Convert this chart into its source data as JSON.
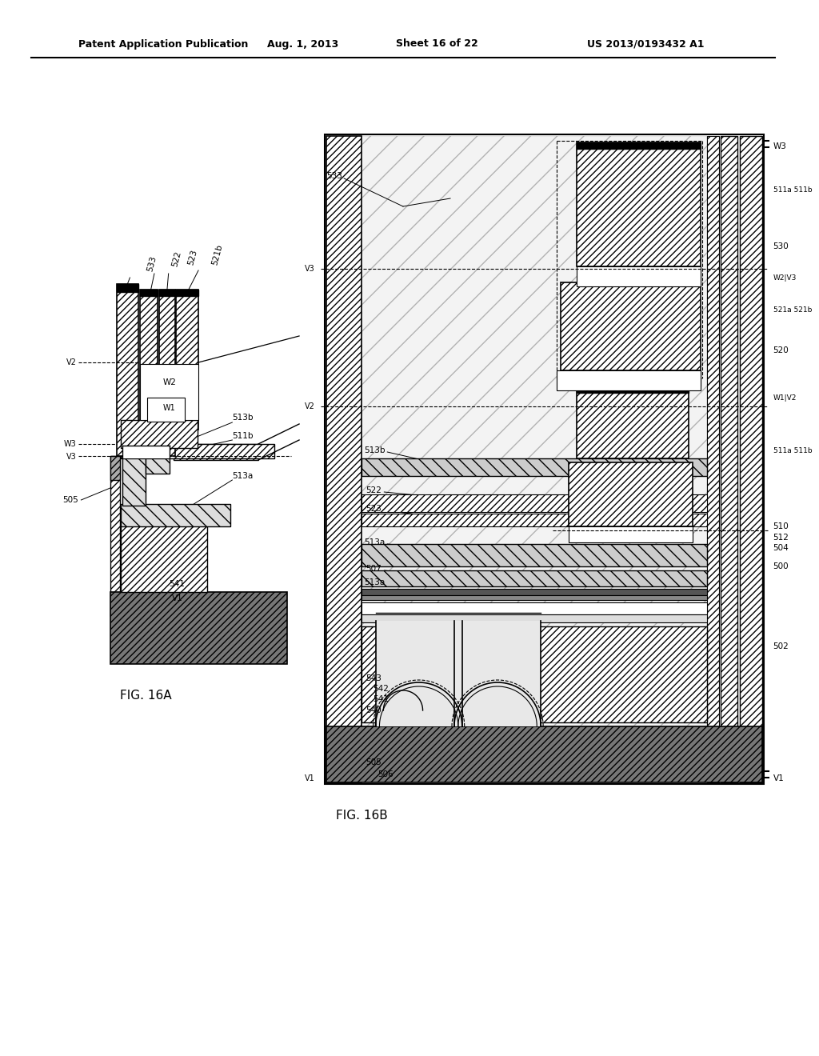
{
  "title_line1": "Patent Application Publication",
  "title_line2": "Aug. 1, 2013",
  "title_line3": "Sheet 16 of 22",
  "title_line4": "US 2013/0193432 A1",
  "fig_label_A": "FIG. 16A",
  "fig_label_B": "FIG. 16B",
  "background": "#ffffff",
  "line_color": "#000000"
}
